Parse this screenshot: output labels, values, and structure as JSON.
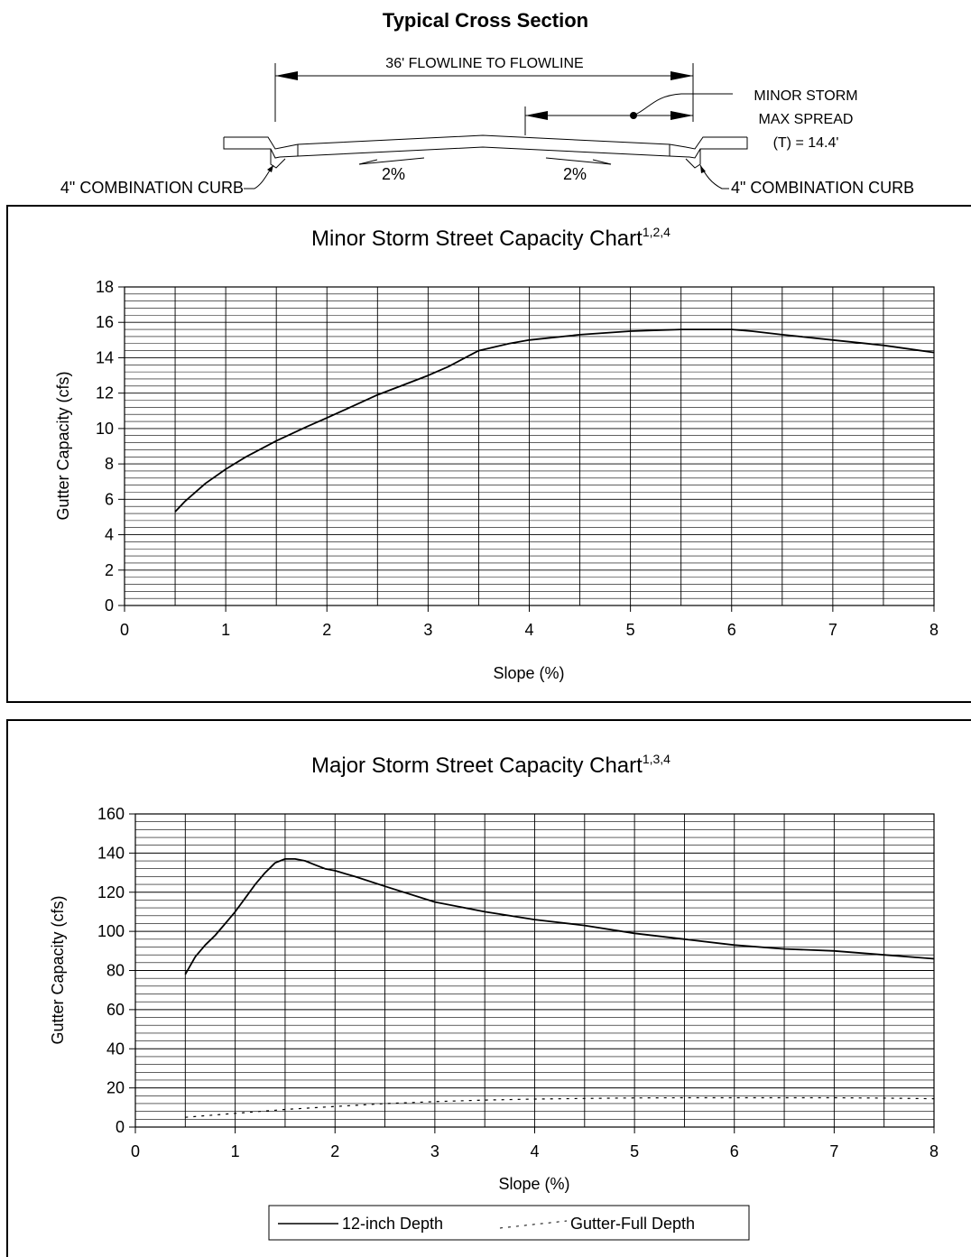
{
  "cross_section": {
    "title": "Typical Cross Section",
    "dimension_label": "36' FLOWLINE TO FLOWLINE",
    "spread_line1": "MINOR STORM",
    "spread_line2": "MAX SPREAD",
    "spread_line3": "(T) = 14.4'",
    "left_slope": "2%",
    "right_slope": "2%",
    "left_curb": "4\" COMBINATION CURB",
    "right_curb": "4\" COMBINATION CURB"
  },
  "chart_data": [
    {
      "type": "line",
      "title": "Minor Storm Street Capacity Chart",
      "title_superscript": "1,2,4",
      "xlabel": "Slope (%)",
      "ylabel": "Gutter Capacity (cfs)",
      "xlim": [
        0,
        8
      ],
      "ylim": [
        0,
        18
      ],
      "x_ticks": [
        0,
        1,
        2,
        3,
        4,
        5,
        6,
        7,
        8
      ],
      "y_ticks": [
        0,
        2,
        4,
        6,
        8,
        10,
        12,
        14,
        16,
        18
      ],
      "grid": true,
      "series": [
        {
          "style": "solid",
          "x": [
            0.5,
            0.6,
            0.8,
            1.0,
            1.2,
            1.5,
            1.8,
            2.0,
            2.5,
            3.0,
            3.2,
            3.5,
            3.8,
            4.0,
            4.5,
            5.0,
            5.5,
            5.8,
            6.0,
            6.2,
            6.5,
            7.0,
            7.5,
            8.0
          ],
          "y": [
            5.3,
            5.9,
            6.9,
            7.7,
            8.4,
            9.3,
            10.1,
            10.6,
            11.9,
            13.0,
            13.5,
            14.4,
            14.8,
            15.0,
            15.3,
            15.5,
            15.6,
            15.6,
            15.6,
            15.5,
            15.3,
            15.0,
            14.7,
            14.3
          ]
        }
      ]
    },
    {
      "type": "line",
      "title": "Major Storm Street Capacity Chart",
      "title_superscript": "1,3,4",
      "xlabel": "Slope (%)",
      "ylabel": "Gutter Capacity (cfs)",
      "xlim": [
        0,
        8
      ],
      "ylim": [
        0,
        160
      ],
      "x_ticks": [
        0,
        1,
        2,
        3,
        4,
        5,
        6,
        7,
        8
      ],
      "y_ticks": [
        0,
        20,
        40,
        60,
        80,
        100,
        120,
        140,
        160
      ],
      "grid": true,
      "legend": "bottom-center",
      "series": [
        {
          "name": "12-inch Depth",
          "style": "solid",
          "x": [
            0.5,
            0.6,
            0.7,
            0.8,
            0.9,
            1.0,
            1.1,
            1.2,
            1.3,
            1.4,
            1.5,
            1.6,
            1.7,
            1.8,
            1.9,
            2.0,
            2.2,
            2.5,
            3.0,
            3.5,
            4.0,
            4.5,
            5.0,
            5.5,
            6.0,
            6.5,
            7.0,
            7.5,
            8.0
          ],
          "y": [
            78,
            87,
            93,
            98,
            104,
            110,
            117,
            124,
            130,
            135,
            137,
            137,
            136,
            134,
            132,
            131,
            128,
            123,
            115,
            110,
            106,
            103,
            99,
            96,
            93,
            91,
            90,
            88,
            86
          ]
        },
        {
          "name": "Gutter-Full Depth",
          "style": "dashed",
          "x": [
            0.5,
            1.0,
            1.5,
            2.0,
            2.5,
            3.0,
            3.5,
            4.0,
            4.5,
            5.0,
            5.5,
            6.0,
            6.5,
            7.0,
            7.5,
            8.0
          ],
          "y": [
            5,
            7,
            9,
            10.5,
            12,
            13,
            13.8,
            14.3,
            14.6,
            14.9,
            15,
            15,
            15,
            15,
            14.8,
            14.5
          ]
        }
      ]
    }
  ]
}
